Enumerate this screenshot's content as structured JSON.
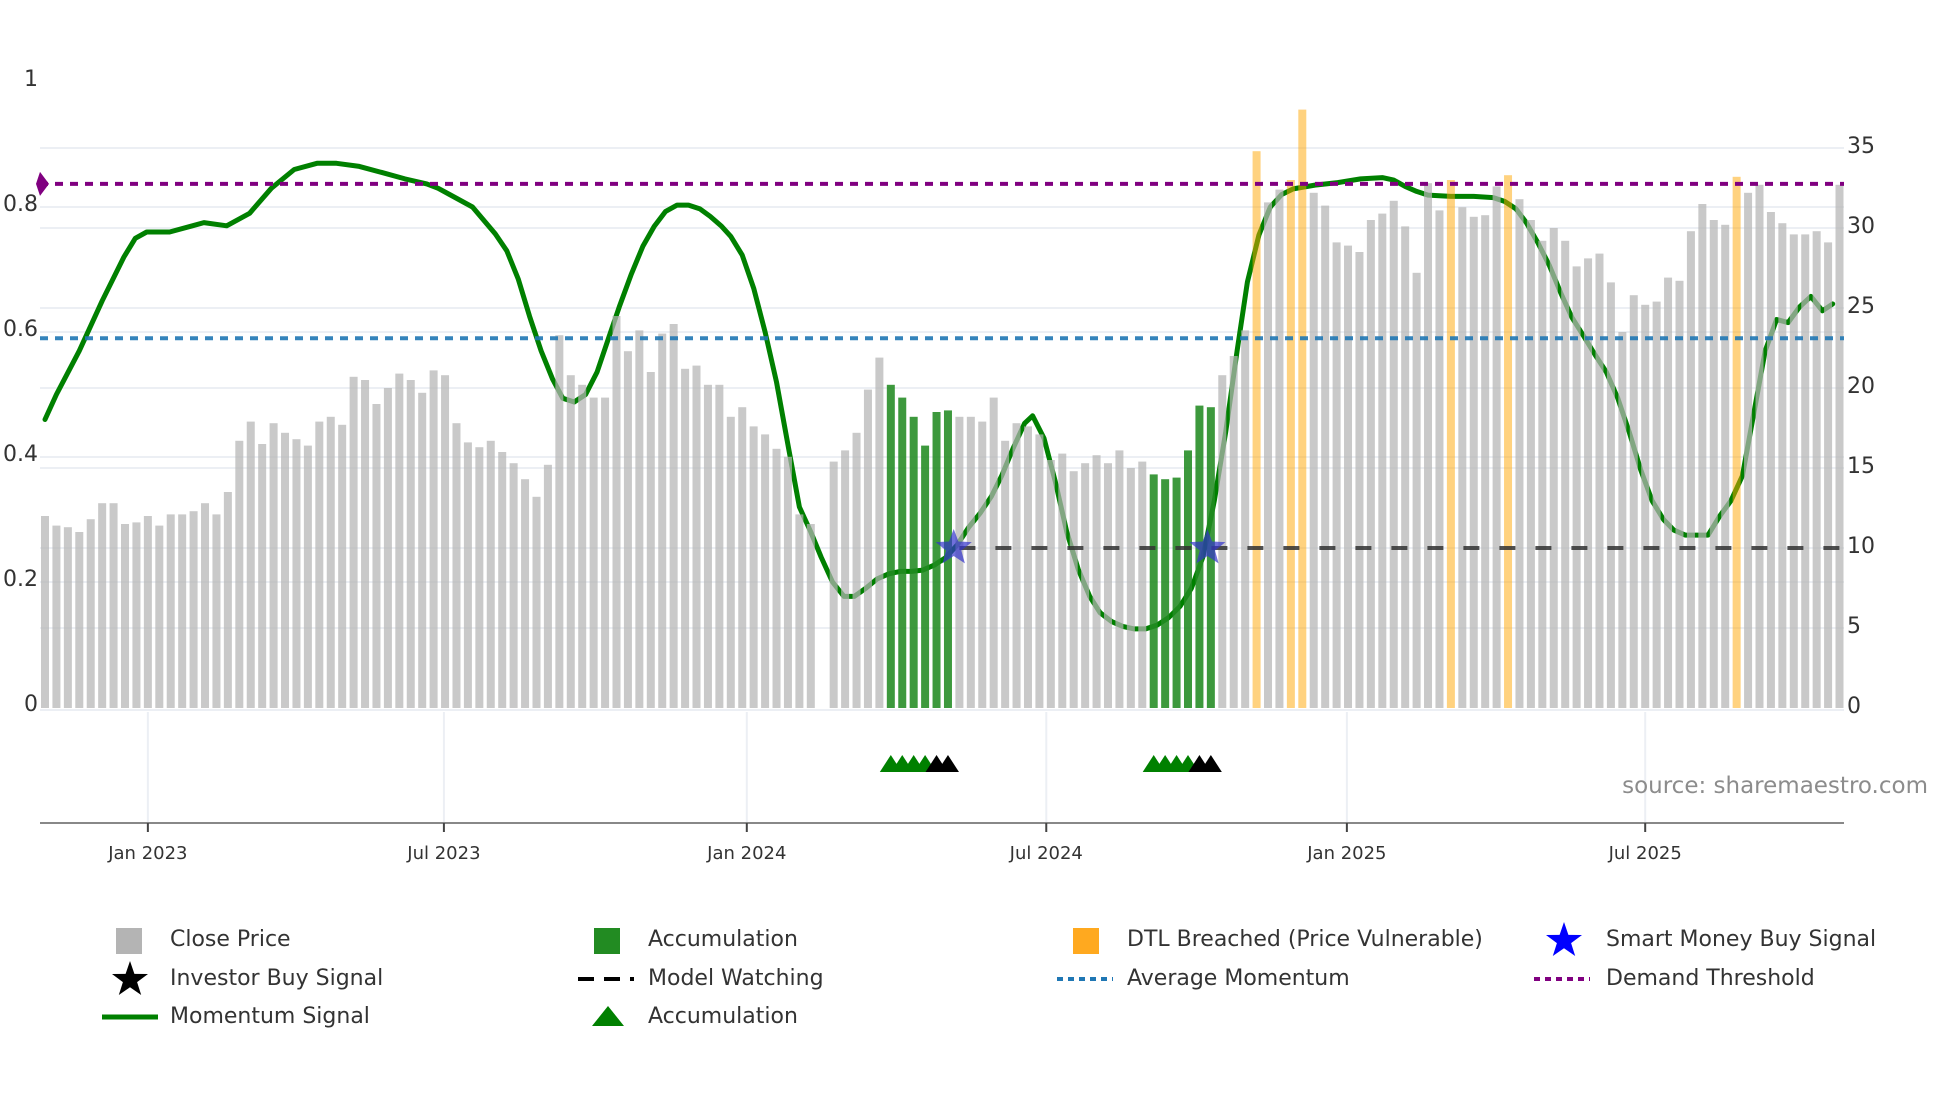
{
  "chart_data": {
    "type": "bar+line",
    "title": "",
    "xlabel": "",
    "ylabel_left": "",
    "ylabel_right": "",
    "x_unit": "week index from first bar (weekly bars, Oct 2022 - Oct 2025)",
    "x_ticks": [
      {
        "label": "Jan 2023",
        "x": 9.0
      },
      {
        "label": "Jul 2023",
        "x": 34.9
      },
      {
        "label": "Jan 2024",
        "x": 61.4
      },
      {
        "label": "Jul 2024",
        "x": 87.6
      },
      {
        "label": "Jan 2025",
        "x": 113.9
      },
      {
        "label": "Jul 2025",
        "x": 140.0
      }
    ],
    "y_left": {
      "range": [
        0,
        1
      ],
      "ticks": [
        "0",
        "0.2",
        "0.4",
        "0.6",
        "0.8",
        "1"
      ],
      "tick_values": [
        0,
        0.2,
        0.4,
        0.6,
        0.8,
        1
      ]
    },
    "y_right": {
      "range": [
        0,
        35
      ],
      "ticks": [
        "0",
        "5",
        "10",
        "15",
        "20",
        "25",
        "30",
        "35"
      ],
      "tick_values": [
        0,
        5,
        10,
        15,
        20,
        25,
        30,
        35
      ]
    },
    "grid": true,
    "legend_position": "bottom",
    "close_price": [
      12.0,
      11.4,
      11.3,
      11.0,
      11.8,
      12.8,
      12.8,
      11.5,
      11.6,
      12.0,
      11.4,
      12.1,
      12.1,
      12.3,
      12.8,
      12.1,
      13.5,
      16.7,
      17.9,
      16.5,
      17.8,
      17.2,
      16.8,
      16.4,
      17.9,
      18.2,
      17.7,
      20.7,
      20.5,
      19.0,
      20.0,
      20.9,
      20.5,
      19.7,
      21.1,
      20.8,
      17.8,
      16.6,
      16.3,
      16.7,
      16.0,
      15.3,
      14.3,
      13.2,
      15.2,
      23.3,
      20.8,
      20.2,
      19.4,
      19.4,
      24.5,
      22.3,
      23.6,
      21.0,
      23.4,
      24.0,
      21.2,
      21.4,
      20.2,
      20.2,
      18.2,
      18.8,
      17.6,
      17.1,
      16.2,
      15.7,
      12.1,
      11.5,
      0,
      15.4,
      16.1,
      17.2,
      19.9,
      21.9,
      20.2,
      19.4,
      18.2,
      16.4,
      18.5,
      18.6,
      18.2,
      18.2,
      17.9,
      19.4,
      16.7,
      17.8,
      17.6,
      17.1,
      15.5,
      15.9,
      14.8,
      15.3,
      15.8,
      15.3,
      16.1,
      15.0,
      15.4,
      14.6,
      14.3,
      14.4,
      16.1,
      18.9,
      18.8,
      20.8,
      22.0,
      23.6,
      34.8,
      31.6,
      32.4,
      33.0,
      37.4,
      32.2,
      31.4,
      29.1,
      28.9,
      28.5,
      30.5,
      30.9,
      31.7,
      30.1,
      27.2,
      32.8,
      31.1,
      33.0,
      31.3,
      30.7,
      30.8,
      32.6,
      33.3,
      31.8,
      30.5,
      29.2,
      30.0,
      29.2,
      27.6,
      28.1,
      28.4,
      26.6,
      23.5,
      25.8,
      25.2,
      25.4,
      26.9,
      26.7,
      29.8,
      31.5,
      30.5,
      30.2,
      33.2,
      32.2,
      32.7,
      31.0,
      30.3,
      29.6,
      29.6,
      29.8,
      29.1,
      32.7
    ],
    "accumulation_bars": [
      74,
      75,
      76,
      77,
      78,
      79,
      97,
      98,
      99,
      100,
      101,
      102
    ],
    "dtl_breached_bars": [
      106,
      109,
      110,
      123,
      128,
      148
    ],
    "momentum_signal": [
      [
        0,
        0.46
      ],
      [
        1,
        0.5
      ],
      [
        3,
        0.57
      ],
      [
        5,
        0.65
      ],
      [
        6.9,
        0.72
      ],
      [
        7.9,
        0.75
      ],
      [
        8.9,
        0.76
      ],
      [
        10.9,
        0.76
      ],
      [
        12.9,
        0.77
      ],
      [
        13.9,
        0.775
      ],
      [
        15.9,
        0.77
      ],
      [
        17.9,
        0.79
      ],
      [
        19.8,
        0.83
      ],
      [
        21.8,
        0.86
      ],
      [
        23.8,
        0.87
      ],
      [
        25.5,
        0.87
      ],
      [
        27.5,
        0.865
      ],
      [
        29.5,
        0.855
      ],
      [
        31.5,
        0.845
      ],
      [
        33.4,
        0.837
      ],
      [
        34.4,
        0.83
      ],
      [
        35.4,
        0.82
      ],
      [
        37.4,
        0.8
      ],
      [
        39.4,
        0.757
      ],
      [
        40.4,
        0.73
      ],
      [
        41.4,
        0.685
      ],
      [
        42.4,
        0.625
      ],
      [
        43.4,
        0.57
      ],
      [
        44.4,
        0.525
      ],
      [
        45.3,
        0.494
      ],
      [
        46.3,
        0.488
      ],
      [
        47.3,
        0.5
      ],
      [
        48.3,
        0.536
      ],
      [
        49.3,
        0.59
      ],
      [
        50.3,
        0.643
      ],
      [
        51.3,
        0.693
      ],
      [
        52.3,
        0.737
      ],
      [
        53.3,
        0.769
      ],
      [
        54.3,
        0.793
      ],
      [
        55.3,
        0.803
      ],
      [
        56.3,
        0.803
      ],
      [
        57.3,
        0.797
      ],
      [
        58.2,
        0.785
      ],
      [
        59.2,
        0.769
      ],
      [
        60.0,
        0.753
      ],
      [
        61.0,
        0.723
      ],
      [
        62.0,
        0.67
      ],
      [
        63.0,
        0.6
      ],
      [
        64.0,
        0.52
      ],
      [
        65.0,
        0.42
      ],
      [
        66.0,
        0.32
      ],
      [
        67.0,
        0.28
      ],
      [
        67.9,
        0.24
      ],
      [
        68.9,
        0.2
      ],
      [
        69.9,
        0.177
      ],
      [
        70.8,
        0.177
      ],
      [
        71.8,
        0.19
      ],
      [
        72.8,
        0.205
      ],
      [
        73.8,
        0.213
      ],
      [
        74.8,
        0.217
      ],
      [
        75.8,
        0.217
      ],
      [
        76.8,
        0.219
      ],
      [
        77.8,
        0.227
      ],
      [
        78.8,
        0.239
      ],
      [
        79.8,
        0.259
      ],
      [
        80.8,
        0.287
      ],
      [
        81.8,
        0.31
      ],
      [
        82.8,
        0.337
      ],
      [
        83.7,
        0.37
      ],
      [
        84.7,
        0.414
      ],
      [
        85.7,
        0.454
      ],
      [
        86.4,
        0.466
      ],
      [
        87.4,
        0.43
      ],
      [
        88.4,
        0.36
      ],
      [
        89.4,
        0.28
      ],
      [
        90.4,
        0.22
      ],
      [
        91.4,
        0.177
      ],
      [
        92.3,
        0.151
      ],
      [
        93.3,
        0.137
      ],
      [
        94.3,
        0.129
      ],
      [
        95.3,
        0.125
      ],
      [
        96.3,
        0.125
      ],
      [
        97.3,
        0.131
      ],
      [
        98.3,
        0.143
      ],
      [
        99.3,
        0.161
      ],
      [
        100.3,
        0.19
      ],
      [
        101.3,
        0.24
      ],
      [
        102.3,
        0.33
      ],
      [
        103.3,
        0.44
      ],
      [
        104.3,
        0.57
      ],
      [
        105.2,
        0.68
      ],
      [
        106.2,
        0.755
      ],
      [
        107.2,
        0.8
      ],
      [
        108.2,
        0.82
      ],
      [
        109.2,
        0.829
      ],
      [
        111.1,
        0.835
      ],
      [
        113.1,
        0.839
      ],
      [
        115.1,
        0.845
      ],
      [
        117.0,
        0.847
      ],
      [
        118.0,
        0.843
      ],
      [
        119.0,
        0.833
      ],
      [
        120.0,
        0.825
      ],
      [
        121.0,
        0.819
      ],
      [
        123.0,
        0.817
      ],
      [
        125.0,
        0.817
      ],
      [
        126.7,
        0.815
      ],
      [
        127.7,
        0.809
      ],
      [
        128.7,
        0.797
      ],
      [
        129.6,
        0.775
      ],
      [
        130.6,
        0.743
      ],
      [
        131.6,
        0.707
      ],
      [
        132.6,
        0.663
      ],
      [
        133.6,
        0.623
      ],
      [
        134.6,
        0.594
      ],
      [
        135.6,
        0.564
      ],
      [
        136.6,
        0.536
      ],
      [
        137.6,
        0.494
      ],
      [
        138.6,
        0.44
      ],
      [
        139.6,
        0.38
      ],
      [
        140.6,
        0.33
      ],
      [
        141.6,
        0.3
      ],
      [
        142.5,
        0.283
      ],
      [
        143.5,
        0.275
      ],
      [
        144.5,
        0.275
      ],
      [
        145.5,
        0.275
      ],
      [
        146.5,
        0.305
      ],
      [
        147.5,
        0.33
      ],
      [
        148.5,
        0.37
      ],
      [
        149.5,
        0.47
      ],
      [
        150.5,
        0.57
      ],
      [
        151.5,
        0.62
      ],
      [
        152.5,
        0.615
      ],
      [
        153.5,
        0.64
      ],
      [
        154.5,
        0.657
      ],
      [
        155.5,
        0.634
      ],
      [
        156.4,
        0.645
      ]
    ],
    "average_momentum": 0.59,
    "demand_threshold": 0.837,
    "model_watching": {
      "value_right_axis": 10,
      "from_x": 80,
      "to_x": 157
    },
    "smart_money_buy_signals": [
      79.5,
      101.7
    ],
    "smart_money_value_right_axis": 10,
    "accumulation_markers": [
      74,
      75,
      76,
      77,
      97,
      98,
      99,
      100
    ],
    "investor_buy_markers": [
      78,
      79,
      101,
      102
    ],
    "colors": {
      "close_price": "#b4b4b4",
      "accumulation": "#228b22",
      "dtl_breached": "#ffa500",
      "momentum": "#008000",
      "average_momentum": "#1f77b4",
      "demand_threshold": "#800080",
      "model_watching": "#333333",
      "smart_money": "#0000ff",
      "investor_buy": "#000000"
    },
    "source": "source: sharemaestro.com"
  },
  "legend": [
    {
      "label": "Close Price",
      "icon": "gray-square"
    },
    {
      "label": "Accumulation",
      "icon": "green-square"
    },
    {
      "label": "DTL Breached (Price Vulnerable)",
      "icon": "orange-square"
    },
    {
      "label": "Smart Money Buy Signal",
      "icon": "blue-star"
    },
    {
      "label": "Investor Buy Signal",
      "icon": "black-star"
    },
    {
      "label": "Model Watching",
      "icon": "black-dash-line"
    },
    {
      "label": "Average Momentum",
      "icon": "blue-dotted-line"
    },
    {
      "label": "Demand Threshold",
      "icon": "purple-dotted-line"
    },
    {
      "label": "Momentum Signal",
      "icon": "green-line"
    },
    {
      "label": "Accumulation",
      "icon": "green-triangle"
    }
  ]
}
